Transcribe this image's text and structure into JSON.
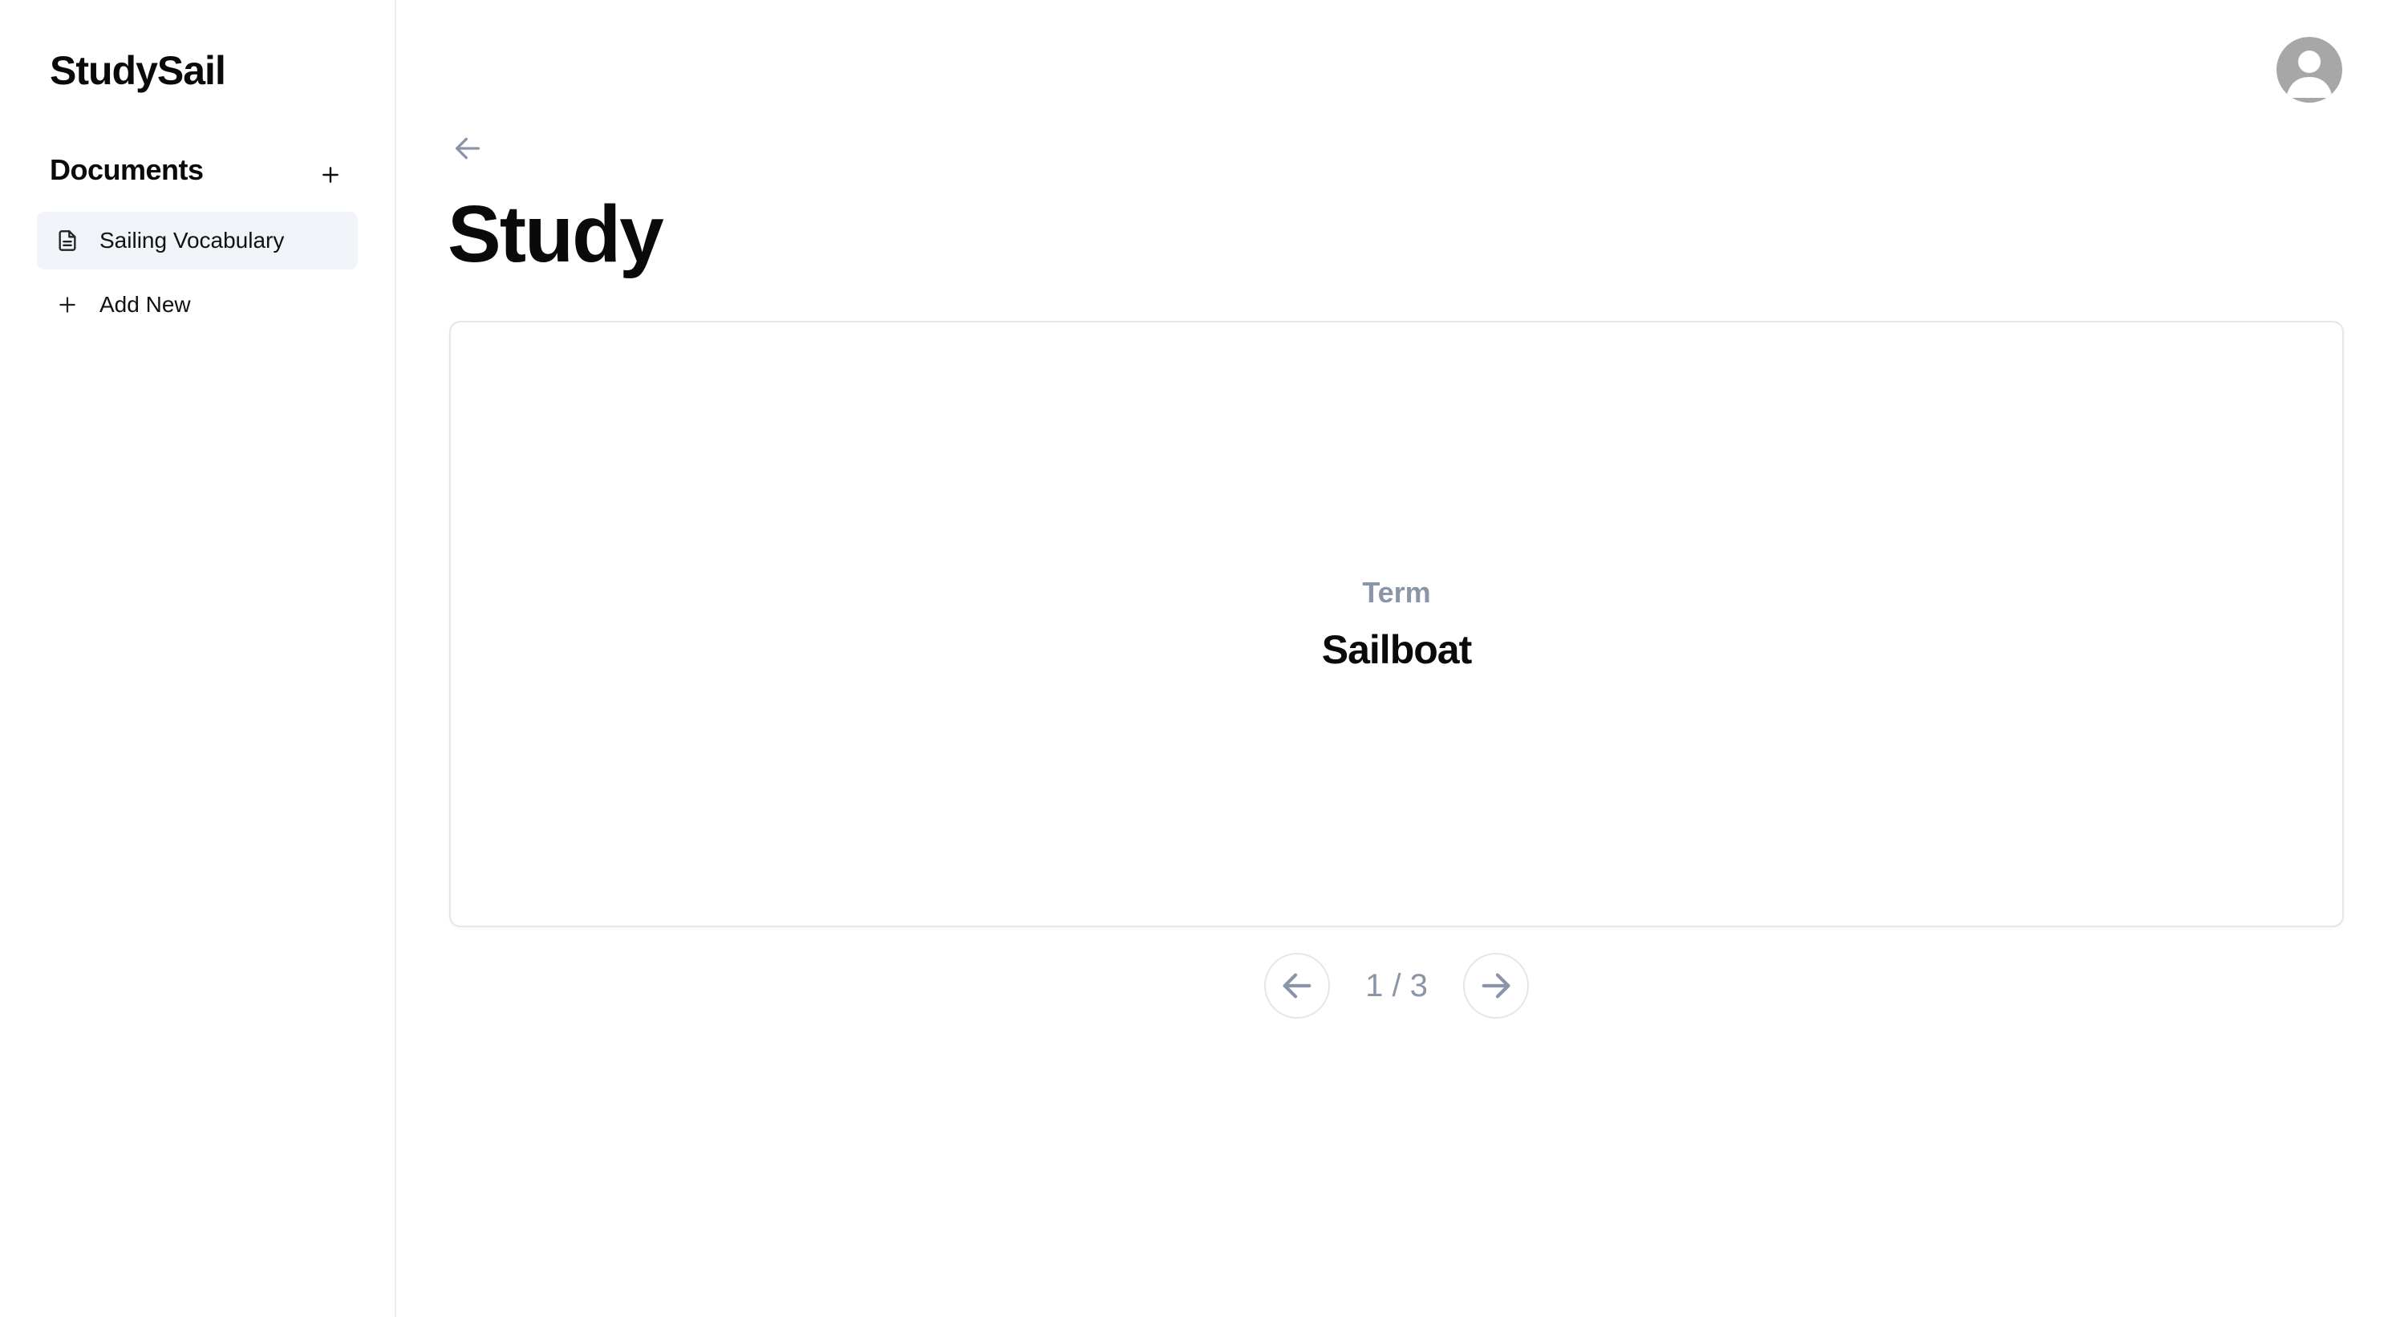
{
  "app": {
    "name": "StudySail"
  },
  "sidebar": {
    "section_title": "Documents",
    "items": [
      {
        "label": "Sailing Vocabulary",
        "icon": "document-icon",
        "active": true
      },
      {
        "label": "Add New",
        "icon": "plus-icon",
        "active": false
      }
    ]
  },
  "main": {
    "title": "Study",
    "card": {
      "side_label": "Term",
      "text": "Sailboat"
    },
    "pager": {
      "position": "1 / 3",
      "current": 1,
      "total": 3
    }
  },
  "colors": {
    "muted_text": "#8a96a8",
    "active_item_bg": "#f0f3f7",
    "border": "#e4e6ea",
    "avatar_bg": "#a7a7a7"
  }
}
